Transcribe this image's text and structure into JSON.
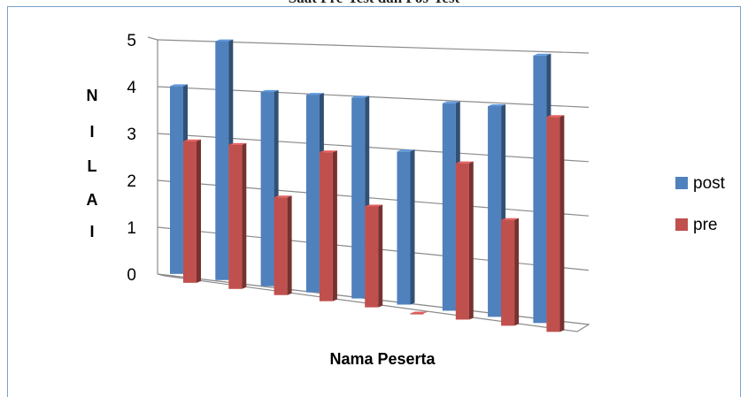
{
  "title_fragment": "Saat Pre-Test dan Pos-Test",
  "chart_data": {
    "type": "bar",
    "style": "3d-clustered-column",
    "categories": [
      "",
      "",
      "",
      "",
      "",
      "",
      "",
      "",
      ""
    ],
    "series": [
      {
        "name": "post",
        "color": "#4f81bd",
        "values": [
          4,
          5,
          4,
          4,
          4,
          3,
          4,
          4,
          5
        ]
      },
      {
        "name": "pre",
        "color": "#c0504d",
        "values": [
          3,
          3,
          2,
          3,
          2,
          0,
          3,
          2,
          4
        ]
      }
    ],
    "ylabel": "NILAI",
    "ylabel_letters": [
      "N",
      "I",
      "L",
      "A",
      "I"
    ],
    "xlabel": "Nama Peserta",
    "ylim": [
      0,
      5
    ],
    "yticks": [
      "0",
      "1",
      "2",
      "3",
      "4",
      "5"
    ],
    "grid": true,
    "legend_position": "right"
  }
}
